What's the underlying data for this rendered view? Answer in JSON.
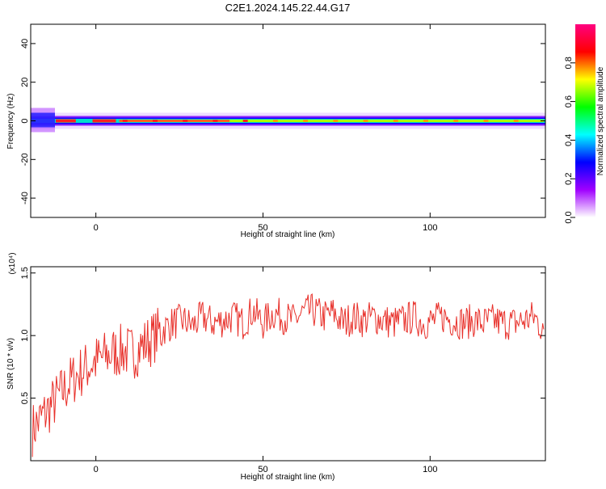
{
  "chart_data": [
    {
      "type": "heatmap",
      "title": "C2E1.2024.145.22.44.G17",
      "xlabel": "Height of straight line (km)",
      "ylabel": "Frequency (Hz)",
      "xlim": [
        -19.5,
        134.5
      ],
      "ylim": [
        -50,
        50
      ],
      "x_ticks": [
        0,
        50,
        100
      ],
      "y_ticks": [
        -40,
        -20,
        0,
        20,
        40
      ],
      "colorbar": {
        "label": "Normalized spectral amplitude",
        "range": [
          0,
          1
        ],
        "ticks": [
          0.0,
          0.2,
          0.4,
          0.6,
          0.8
        ],
        "colormap": [
          "#ffffff",
          "#a000ff",
          "#0000ff",
          "#00ffff",
          "#00ff00",
          "#ffff00",
          "#ff0000",
          "#ff0080"
        ]
      },
      "ridge": {
        "freq_hz": 0,
        "description": "strong line near 0 Hz across all heights"
      }
    },
    {
      "type": "line",
      "xlabel": "Height of straight line (km)",
      "ylabel": "SNR (10 * v/v)",
      "scale_note": "(x10⁴)",
      "xlim": [
        -19.5,
        134.5
      ],
      "ylim": [
        0.0,
        1.55
      ],
      "x_ticks": [
        0,
        50,
        100
      ],
      "y_ticks": [
        0.5,
        1.0,
        1.5
      ],
      "series": [
        {
          "color": "#e8302a",
          "x": [
            -19,
            -16,
            -13,
            -10,
            -7,
            -4,
            -1,
            2,
            5,
            8,
            11,
            14,
            17,
            20,
            23,
            26,
            29,
            32,
            35,
            38,
            41,
            44,
            47,
            50,
            53,
            56,
            59,
            62,
            65,
            68,
            71,
            74,
            77,
            80,
            83,
            86,
            89,
            92,
            95,
            98,
            101,
            104,
            107,
            110,
            113,
            116,
            119,
            122,
            125,
            128,
            131,
            134
          ],
          "y": [
            0.25,
            0.35,
            0.45,
            0.55,
            0.65,
            0.72,
            0.78,
            0.82,
            0.86,
            0.88,
            0.86,
            0.92,
            0.98,
            1.05,
            1.1,
            1.12,
            1.08,
            1.15,
            1.1,
            1.12,
            1.15,
            1.1,
            1.2,
            1.1,
            1.18,
            1.15,
            1.12,
            1.18,
            1.2,
            1.15,
            1.18,
            1.1,
            1.15,
            1.12,
            1.15,
            1.12,
            1.1,
            1.12,
            1.15,
            1.1,
            1.12,
            1.15,
            1.12,
            1.1,
            1.12,
            1.1,
            1.12,
            1.1,
            1.1,
            1.12,
            1.15,
            1.05
          ]
        }
      ]
    }
  ]
}
